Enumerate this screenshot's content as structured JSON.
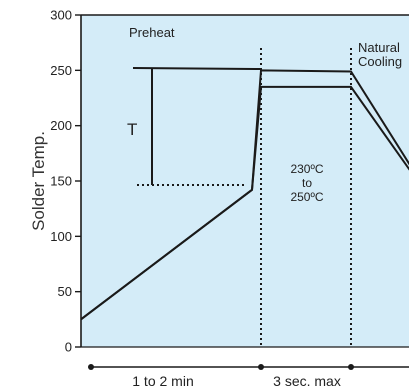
{
  "chart_data": {
    "type": "line",
    "ylabel": "Solder Temp.",
    "ylim": [
      0,
      300
    ],
    "y_ticks": [
      0,
      50,
      100,
      150,
      200,
      250,
      300
    ],
    "grid": false,
    "background_color": "#d4ecf8",
    "line_color": "#1a1a1a",
    "x_phases": [
      {
        "label": "1 to 2 min",
        "start": 0,
        "end": 1
      },
      {
        "label": "3 sec. max",
        "start": 1,
        "end": 1.5
      }
    ],
    "series": [
      {
        "points": [
          [
            0,
            25
          ],
          [
            0.95,
            142
          ],
          [
            1,
            250
          ],
          [
            1.5,
            249
          ],
          [
            2.0,
            120
          ]
        ]
      },
      {
        "points": [
          [
            0,
            25
          ],
          [
            0.95,
            142
          ],
          [
            1,
            235
          ],
          [
            1.5,
            235
          ],
          [
            2.0,
            120
          ]
        ]
      }
    ],
    "annotations": {
      "preheat": "Preheat",
      "natural_cooling_line1": "Natural",
      "natural_cooling_line2": "Cooling",
      "t_label": "T",
      "range_line1": "230ºC",
      "range_line2": "to",
      "range_line3": "250ºC"
    }
  }
}
